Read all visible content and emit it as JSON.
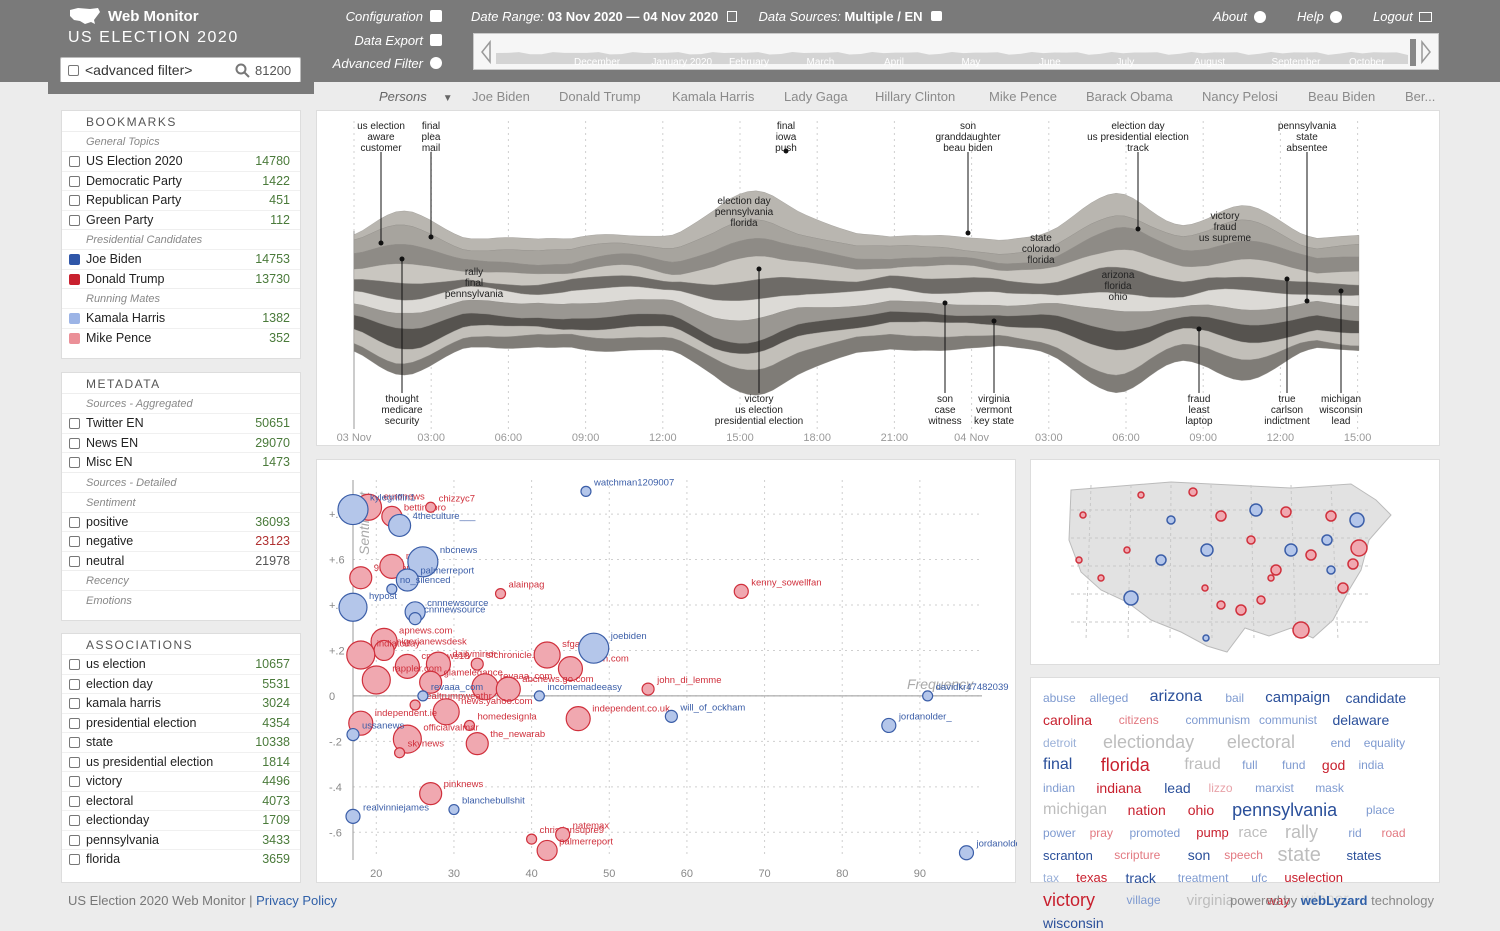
{
  "app": {
    "title": "Web Monitor",
    "subtitle": "US ELECTION 2020"
  },
  "filter": {
    "placeholder": "<advanced filter>",
    "count": "81200"
  },
  "menu": {
    "configuration": "Configuration",
    "data_export": "Data Export",
    "advanced_filter": "Advanced Filter"
  },
  "date_range": {
    "label": "Date Range:",
    "value": "03 Nov 2020 — 04 Nov 2020"
  },
  "data_sources": {
    "label": "Data Sources:",
    "value": "Multiple",
    "lang": "EN"
  },
  "nav": {
    "about": "About",
    "help": "Help",
    "logout": "Logout"
  },
  "timeline_months": [
    "December",
    "January 2020",
    "February",
    "March",
    "April",
    "May",
    "June",
    "July",
    "August",
    "September",
    "October"
  ],
  "persons": {
    "label": "Persons",
    "items": [
      "Joe Biden",
      "Donald Trump",
      "Kamala Harris",
      "Lady Gaga",
      "Hillary Clinton",
      "Mike Pence",
      "Barack Obama",
      "Nancy Pelosi",
      "Beau Biden",
      "Ber..."
    ]
  },
  "bookmarks": {
    "title": "BOOKMARKS",
    "groups": [
      {
        "name": "General Topics",
        "items": [
          {
            "label": "US Election 2020",
            "count": "14780"
          },
          {
            "label": "Democratic Party",
            "count": "1422"
          },
          {
            "label": "Republican Party",
            "count": "451"
          },
          {
            "label": "Green Party",
            "count": "112"
          }
        ]
      },
      {
        "name": "Presidential Candidates",
        "items": [
          {
            "label": "Joe Biden",
            "count": "14753",
            "color": "#2f56a8"
          },
          {
            "label": "Donald Trump",
            "count": "13730",
            "color": "#c8202e"
          }
        ]
      },
      {
        "name": "Running Mates",
        "items": [
          {
            "label": "Kamala Harris",
            "count": "1382",
            "color": "#9cb4e6"
          },
          {
            "label": "Mike Pence",
            "count": "352",
            "color": "#eb9098"
          }
        ]
      }
    ]
  },
  "metadata": {
    "title": "METADATA",
    "sources_agg": {
      "name": "Sources - Aggregated",
      "items": [
        {
          "label": "Twitter EN",
          "count": "50651"
        },
        {
          "label": "News EN",
          "count": "29070"
        },
        {
          "label": "Misc EN",
          "count": "1473"
        }
      ]
    },
    "sources_det": "Sources - Detailed",
    "sentiment": {
      "name": "Sentiment",
      "items": [
        {
          "label": "positive",
          "count": "36093"
        },
        {
          "label": "negative",
          "count": "23123"
        },
        {
          "label": "neutral",
          "count": "21978"
        }
      ]
    },
    "recency": "Recency",
    "emotions": "Emotions"
  },
  "associations": {
    "title": "ASSOCIATIONS",
    "items": [
      {
        "label": "us election",
        "count": "10657"
      },
      {
        "label": "election day",
        "count": "5531"
      },
      {
        "label": "kamala harris",
        "count": "3024"
      },
      {
        "label": "presidential election",
        "count": "4354"
      },
      {
        "label": "state",
        "count": "10338"
      },
      {
        "label": "us presidential election",
        "count": "1814"
      },
      {
        "label": "victory",
        "count": "4496"
      },
      {
        "label": "electoral",
        "count": "4073"
      },
      {
        "label": "electionday",
        "count": "1709"
      },
      {
        "label": "pennsylvania",
        "count": "3433"
      },
      {
        "label": "florida",
        "count": "3659"
      }
    ]
  },
  "stream": {
    "time_labels": [
      "03 Nov",
      "03:00",
      "06:00",
      "09:00",
      "12:00",
      "15:00",
      "18:00",
      "21:00",
      "04 Nov",
      "03:00",
      "06:00",
      "09:00",
      "12:00",
      "15:00"
    ],
    "top_annotations": [
      {
        "lines": [
          "us election",
          "aware",
          "customer"
        ]
      },
      {
        "lines": [
          "final",
          "plea",
          "mail"
        ]
      },
      {
        "lines": [
          "final",
          "iowa",
          "push"
        ]
      },
      {
        "lines": [
          "son",
          "granddaughter",
          "beau biden"
        ]
      },
      {
        "lines": [
          "election day",
          "us presidential election",
          "track"
        ]
      },
      {
        "lines": [
          "pennsylvania",
          "state",
          "absentee"
        ]
      }
    ],
    "mid_annotations": [
      {
        "lines": [
          "rally",
          "final",
          "pennsylvania"
        ]
      },
      {
        "lines": [
          "election day",
          "pennsylvania",
          "florida"
        ]
      },
      {
        "lines": [
          "state",
          "colorado",
          "florida"
        ]
      },
      {
        "lines": [
          "arizona",
          "florida",
          "ohio"
        ]
      },
      {
        "lines": [
          "victory",
          "fraud",
          "us supreme"
        ]
      }
    ],
    "bottom_annotations": [
      {
        "lines": [
          "thought",
          "medicare",
          "security"
        ]
      },
      {
        "lines": [
          "victory",
          "us election",
          "presidential election"
        ]
      },
      {
        "lines": [
          "son",
          "case",
          "witness"
        ]
      },
      {
        "lines": [
          "virginia",
          "vermont",
          "key state"
        ]
      },
      {
        "lines": [
          "fraud",
          "least",
          "laptop"
        ]
      },
      {
        "lines": [
          "true",
          "carlson",
          "indictment"
        ]
      },
      {
        "lines": [
          "michigan",
          "wisconsin",
          "lead"
        ]
      }
    ]
  },
  "chart_data": {
    "type": "scatter",
    "title": "",
    "xlabel": "Frequency",
    "ylabel": "Sentiment",
    "xlim": [
      17,
      98
    ],
    "ylim": [
      -0.7,
      0.95
    ],
    "xticks": [
      20,
      30,
      40,
      50,
      60,
      70,
      80,
      90
    ],
    "yticks": [
      "+.8",
      "+.6",
      "+.4",
      "+.2",
      "0",
      "-.2",
      "-.4",
      "-.6"
    ],
    "series": [
      {
        "name": "Donald Trump",
        "color": "#c8202e",
        "points": [
          {
            "label": "euronews",
            "x": 19,
            "y": 0.83,
            "r": 13
          },
          {
            "label": "bettingpro",
            "x": 22,
            "y": 0.79,
            "r": 10
          },
          {
            "label": "chizzyc7",
            "x": 27,
            "y": 0.83,
            "r": 5
          },
          {
            "label": "9newsaus",
            "x": 18,
            "y": 0.52,
            "r": 11
          },
          {
            "label": "msnbc",
            "x": 22,
            "y": 0.57,
            "r": 12
          },
          {
            "label": "alainpag2",
            "x": 36,
            "y": 0.45,
            "r": 5
          },
          {
            "label": "kenny_sowellfan",
            "x": 67,
            "y": 0.46,
            "r": 7
          },
          {
            "label": "apnews.com",
            "x": 21,
            "y": 0.24,
            "r": 13
          },
          {
            "label": "nigerianewsdesk",
            "x": 21,
            "y": 0.2,
            "r": 10
          },
          {
            "label": "indiatoday",
            "x": 18,
            "y": 0.18,
            "r": 14
          },
          {
            "label": "cnnnews18",
            "x": 24,
            "y": 0.13,
            "r": 12
          },
          {
            "label": "dailymirror",
            "x": 28,
            "y": 0.14,
            "r": 12
          },
          {
            "label": "sfchronicle.com",
            "x": 33,
            "y": 0.14,
            "r": 6
          },
          {
            "label": "sfgate.com",
            "x": 42,
            "y": 0.18,
            "r": 13
          },
          {
            "label": "chron.com",
            "x": 45,
            "y": 0.12,
            "r": 12
          },
          {
            "label": "glamelegance",
            "x": 27,
            "y": 0.06,
            "r": 11
          },
          {
            "label": "rappler.com",
            "x": 20,
            "y": 0.07,
            "r": 14
          },
          {
            "label": "revaaa_com",
            "x": 34,
            "y": 0.04,
            "r": 13
          },
          {
            "label": "abcnews.go.com",
            "x": 37,
            "y": 0.03,
            "r": 12
          },
          {
            "label": "john_di_lemme",
            "x": 55,
            "y": 0.03,
            "r": 6
          },
          {
            "label": "realtrumpweathr",
            "x": 25,
            "y": -0.04,
            "r": 5
          },
          {
            "label": "news.yahoo.com",
            "x": 29,
            "y": -0.07,
            "r": 13
          },
          {
            "label": "independent.co.uk",
            "x": 46,
            "y": -0.1,
            "r": 12
          },
          {
            "label": "homedesignla",
            "x": 32,
            "y": -0.13,
            "r": 5
          },
          {
            "label": "officialvalmar",
            "x": 24,
            "y": -0.19,
            "r": 14
          },
          {
            "label": "the_newarab",
            "x": 33,
            "y": -0.21,
            "r": 11
          },
          {
            "label": "independent.ie",
            "x": 18,
            "y": -0.12,
            "r": 12
          },
          {
            "label": "skynews",
            "x": 23,
            "y": -0.25,
            "r": 5
          },
          {
            "label": "pinknews",
            "x": 27,
            "y": -0.43,
            "r": 11
          },
          {
            "label": "christiansupre9",
            "x": 40,
            "y": -0.63,
            "r": 5
          },
          {
            "label": "natemax",
            "x": 44,
            "y": -0.61,
            "r": 7
          },
          {
            "label": "palmerreport",
            "x": 42,
            "y": -0.68,
            "r": 10
          }
        ]
      },
      {
        "name": "Joe Biden",
        "color": "#6f8fce",
        "points": [
          {
            "label": "kylegriffin1",
            "x": 17,
            "y": 0.82,
            "r": 15
          },
          {
            "label": "watchman1209007",
            "x": 47,
            "y": 0.9,
            "r": 5
          },
          {
            "label": "4theculture___",
            "x": 23,
            "y": 0.75,
            "r": 11
          },
          {
            "label": "nbcnews",
            "x": 26,
            "y": 0.59,
            "r": 15
          },
          {
            "label": "palmerreport",
            "x": 24,
            "y": 0.51,
            "r": 11
          },
          {
            "label": "no_silenced",
            "x": 22,
            "y": 0.47,
            "r": 5
          },
          {
            "label": "hypost",
            "x": 17,
            "y": 0.39,
            "r": 14
          },
          {
            "label": "cnnnewsource",
            "x": 25,
            "y": 0.37,
            "r": 10
          },
          {
            "label": "cnnnewsource2",
            "x": 25,
            "y": 0.34,
            "r": 6
          },
          {
            "label": "joebiden",
            "x": 48,
            "y": 0.21,
            "r": 15
          },
          {
            "label": "revaaa_com",
            "x": 26,
            "y": 0.0,
            "r": 5
          },
          {
            "label": "incomemadeeasy",
            "x": 41,
            "y": 0.0,
            "r": 5
          },
          {
            "label": "davidkr47482039",
            "x": 91,
            "y": 0.0,
            "r": 5
          },
          {
            "label": "will_of_ockham",
            "x": 58,
            "y": -0.09,
            "r": 6
          },
          {
            "label": "jordanolder_",
            "x": 86,
            "y": -0.13,
            "r": 7
          },
          {
            "label": "ussanews",
            "x": 17,
            "y": -0.17,
            "r": 6
          },
          {
            "label": "blanchebullshit",
            "x": 30,
            "y": -0.5,
            "r": 5
          },
          {
            "label": "realvinniejames",
            "x": 17,
            "y": -0.53,
            "r": 7
          },
          {
            "label": "jordanolder_2",
            "x": 96,
            "y": -0.69,
            "r": 7
          }
        ]
      }
    ]
  },
  "cloud": [
    {
      "w": "abuse",
      "c": "#7e9ad0",
      "s": 12
    },
    {
      "w": "alleged",
      "c": "#7e9ad0",
      "s": 12
    },
    {
      "w": "arizona",
      "c": "#2a4f9a",
      "s": 16
    },
    {
      "w": "bail",
      "c": "#7e9ad0",
      "s": 12
    },
    {
      "w": "campaign",
      "c": "#2a4f9a",
      "s": 15
    },
    {
      "w": "candidate",
      "c": "#2a4f9a",
      "s": 14
    },
    {
      "w": "carolina",
      "c": "#c8202e",
      "s": 14
    },
    {
      "w": "citizens",
      "c": "#e27880",
      "s": 12
    },
    {
      "w": "communism",
      "c": "#7e9ad0",
      "s": 12
    },
    {
      "w": "communist",
      "c": "#7e9ad0",
      "s": 12
    },
    {
      "w": "delaware",
      "c": "#2a4f9a",
      "s": 14
    },
    {
      "w": "detroit",
      "c": "#9ab0d8",
      "s": 12
    },
    {
      "w": "electionday",
      "c": "#bdbdbd",
      "s": 18
    },
    {
      "w": "electoral",
      "c": "#bdbdbd",
      "s": 18
    },
    {
      "w": "end",
      "c": "#7e9ad0",
      "s": 12
    },
    {
      "w": "equality",
      "c": "#7e9ad0",
      "s": 12
    },
    {
      "w": "final",
      "c": "#2a4f9a",
      "s": 16
    },
    {
      "w": "florida",
      "c": "#c8202e",
      "s": 18
    },
    {
      "w": "fraud",
      "c": "#bdbdbd",
      "s": 16
    },
    {
      "w": "full",
      "c": "#7e9ad0",
      "s": 12
    },
    {
      "w": "fund",
      "c": "#7e9ad0",
      "s": 12
    },
    {
      "w": "god",
      "c": "#c8202e",
      "s": 14
    },
    {
      "w": "india",
      "c": "#7e9ad0",
      "s": 12
    },
    {
      "w": "indian",
      "c": "#7e9ad0",
      "s": 12
    },
    {
      "w": "indiana",
      "c": "#c8202e",
      "s": 14
    },
    {
      "w": "lead",
      "c": "#2a4f9a",
      "s": 14
    },
    {
      "w": "lizzo",
      "c": "#e8a2a8",
      "s": 12
    },
    {
      "w": "marxist",
      "c": "#7e9ad0",
      "s": 12
    },
    {
      "w": "mask",
      "c": "#7e9ad0",
      "s": 12
    },
    {
      "w": "michigan",
      "c": "#bdbdbd",
      "s": 16
    },
    {
      "w": "nation",
      "c": "#c8202e",
      "s": 14
    },
    {
      "w": "ohio",
      "c": "#c8202e",
      "s": 14
    },
    {
      "w": "pennsylvania",
      "c": "#2a4f9a",
      "s": 18
    },
    {
      "w": "place",
      "c": "#7e9ad0",
      "s": 12
    },
    {
      "w": "power",
      "c": "#7e9ad0",
      "s": 12
    },
    {
      "w": "pray",
      "c": "#e27880",
      "s": 12
    },
    {
      "w": "promoted",
      "c": "#7e9ad0",
      "s": 12
    },
    {
      "w": "pump",
      "c": "#c8202e",
      "s": 13
    },
    {
      "w": "race",
      "c": "#bdbdbd",
      "s": 15
    },
    {
      "w": "rally",
      "c": "#bdbdbd",
      "s": 18
    },
    {
      "w": "rid",
      "c": "#7e9ad0",
      "s": 12
    },
    {
      "w": "road",
      "c": "#e27880",
      "s": 12
    },
    {
      "w": "scranton",
      "c": "#2a4f9a",
      "s": 13
    },
    {
      "w": "scripture",
      "c": "#e27880",
      "s": 12
    },
    {
      "w": "son",
      "c": "#2a4f9a",
      "s": 14
    },
    {
      "w": "speech",
      "c": "#e27880",
      "s": 12
    },
    {
      "w": "state",
      "c": "#bdbdbd",
      "s": 20
    },
    {
      "w": "states",
      "c": "#2a4f9a",
      "s": 13
    },
    {
      "w": "tax",
      "c": "#9ab0d8",
      "s": 12
    },
    {
      "w": "texas",
      "c": "#c8202e",
      "s": 13
    },
    {
      "w": "track",
      "c": "#2a4f9a",
      "s": 14
    },
    {
      "w": "treatment",
      "c": "#7e9ad0",
      "s": 12
    },
    {
      "w": "ufc",
      "c": "#7e9ad0",
      "s": 12
    },
    {
      "w": "uselection",
      "c": "#c8202e",
      "s": 13
    },
    {
      "w": "victory",
      "c": "#c8202e",
      "s": 18
    },
    {
      "w": "village",
      "c": "#7e9ad0",
      "s": 12
    },
    {
      "w": "virginia",
      "c": "#bdbdbd",
      "s": 15
    },
    {
      "w": "way",
      "c": "#c8202e",
      "s": 13
    },
    {
      "w": "winner",
      "c": "#d4d4d4",
      "s": 16
    },
    {
      "w": "wisconsin",
      "c": "#2a4f9a",
      "s": 14
    }
  ],
  "footer": {
    "text": "US Election 2020 Web Monitor | ",
    "privacy": "Privacy Policy",
    "powered_pre": "powered by ",
    "powered_brand": "webLyzard",
    "powered_post": " technology"
  },
  "colors": {
    "topbar": "#7a7a7a",
    "biden": "#2f56a8",
    "trump": "#c8202e",
    "harris": "#9cb4e6",
    "pence": "#eb9098"
  }
}
